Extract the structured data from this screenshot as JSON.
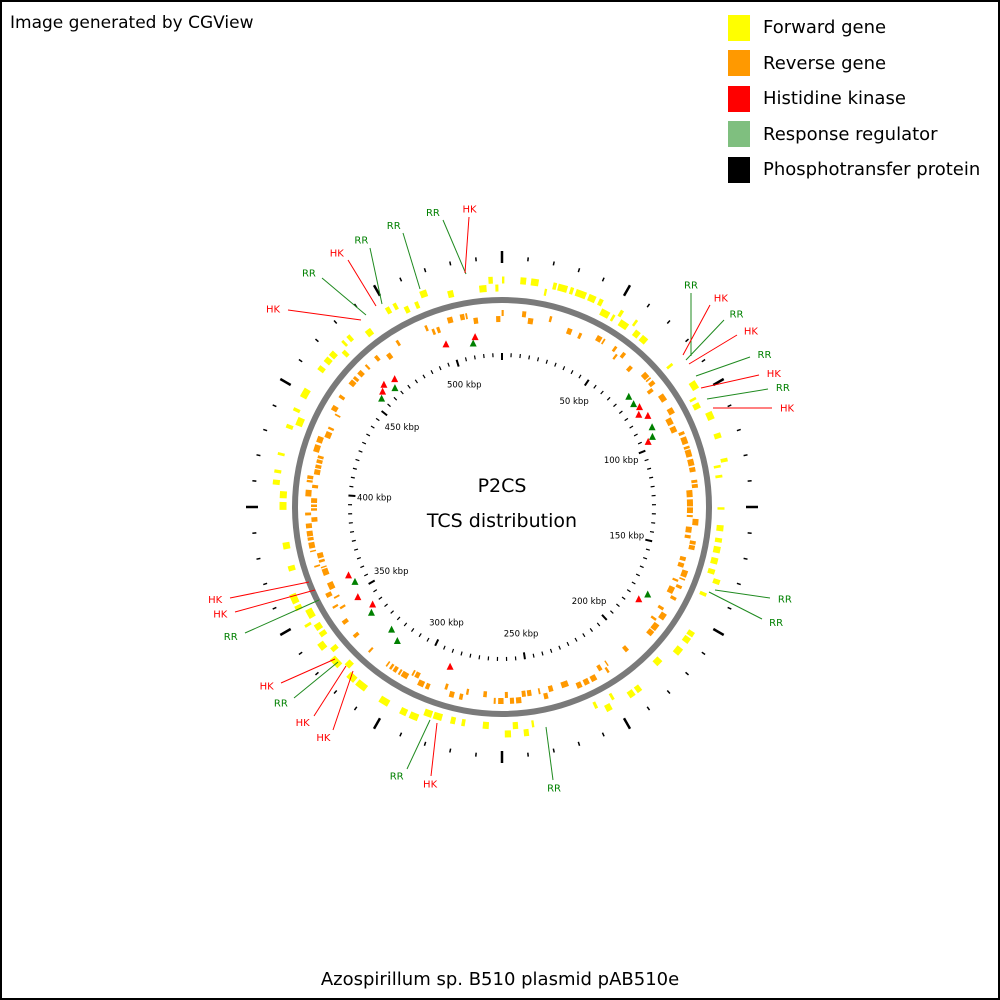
{
  "header": {
    "credit": "Image generated by CGView"
  },
  "legend": [
    {
      "label": "Forward gene",
      "color": "#ffff00"
    },
    {
      "label": "Reverse gene",
      "color": "#ff9900"
    },
    {
      "label": "Histidine kinase",
      "color": "#ff0000"
    },
    {
      "label": "Response regulator",
      "color": "#7fbf7f"
    },
    {
      "label": "Phosphotransfer protein",
      "color": "#000000"
    }
  ],
  "map": {
    "title_line1": "P2CS",
    "title_line2": "TCS distribution",
    "tick_labels": [
      "50 kbp",
      "100 kbp",
      "150 kbp",
      "200 kbp",
      "250 kbp",
      "300 kbp",
      "350 kbp",
      "400 kbp",
      "450 kbp",
      "500 kbp"
    ],
    "features": [
      {
        "label": "RR",
        "type": "RR"
      },
      {
        "label": "HK",
        "type": "HK"
      },
      {
        "label": "RR",
        "type": "RR"
      },
      {
        "label": "HK",
        "type": "HK"
      },
      {
        "label": "RR",
        "type": "RR"
      },
      {
        "label": "HK",
        "type": "HK"
      },
      {
        "label": "RR",
        "type": "RR"
      },
      {
        "label": "HK",
        "type": "HK"
      },
      {
        "label": "RR",
        "type": "RR"
      },
      {
        "label": "RR",
        "type": "RR"
      },
      {
        "label": "HK",
        "type": "HK"
      },
      {
        "label": "HK",
        "type": "HK"
      },
      {
        "label": "RR",
        "type": "RR"
      },
      {
        "label": "HK",
        "type": "HK"
      },
      {
        "label": "HK",
        "type": "HK"
      },
      {
        "label": "RR",
        "type": "RR"
      },
      {
        "label": "RR",
        "type": "RR"
      },
      {
        "label": "HK",
        "type": "HK"
      },
      {
        "label": "HK",
        "type": "HK"
      },
      {
        "label": "RR",
        "type": "RR"
      },
      {
        "label": "HK",
        "type": "HK"
      },
      {
        "label": "RR",
        "type": "RR"
      },
      {
        "label": "HK",
        "type": "HK"
      },
      {
        "label": "RR",
        "type": "RR"
      },
      {
        "label": "RR",
        "type": "RR"
      },
      {
        "label": "RR",
        "type": "RR"
      },
      {
        "label": "HK",
        "type": "HK"
      }
    ]
  },
  "footer": {
    "title": "Azospirillum sp. B510 plasmid pAB510e"
  }
}
